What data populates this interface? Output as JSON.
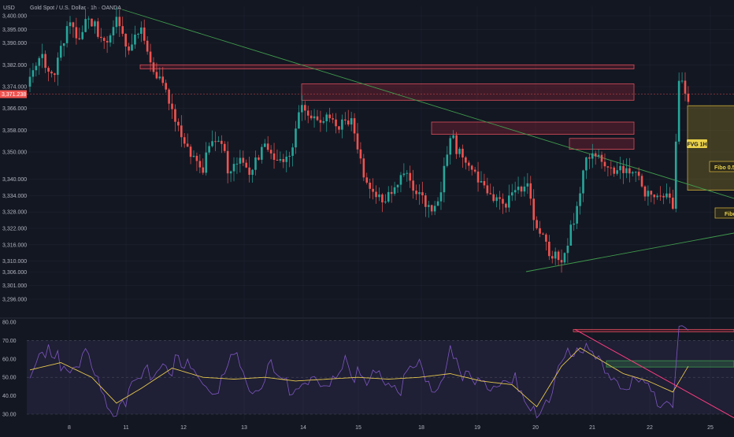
{
  "title": "Gold Spot / U.S. Dollar · 1h · OANDA",
  "currency": "USD",
  "colors": {
    "background": "#131722",
    "grid": "#1f2330",
    "up": "#26a69a",
    "down": "#ef5350",
    "trendline": "#3f9a4c",
    "zone_stroke": "#d94e5b",
    "zone_fill": "rgba(178,40,60,0.28)",
    "fvg_fill": "rgba(200,170,40,0.25)",
    "fvg_stroke": "#c9a838",
    "rsi_line": "#7e57c2",
    "rsi_ma": "#e6c84d",
    "rsi_band": "rgba(126,87,194,0.12)",
    "rsi_trend": "#ff3d7f",
    "price_tag": "#ef5350"
  },
  "chart_data": [
    {
      "type": "candlestick",
      "title": "Gold Spot / U.S. Dollar · 1h · OANDA",
      "x_ticks": [
        "8",
        "11",
        "12",
        "13",
        "14",
        "15",
        "18",
        "19",
        "20",
        "21",
        "22",
        "25"
      ],
      "y_ticks": [
        3400.0,
        3395.0,
        3390.0,
        3382.0,
        3374.0,
        3366.0,
        3358.0,
        3350.0,
        3340.0,
        3334.0,
        3328.0,
        3322.0,
        3316.0,
        3310.0,
        3306.0,
        3301.0,
        3296.0
      ],
      "y_tick_labels": [
        "3,400.000",
        "3,395.000",
        "3,390.000",
        "3,382.000",
        "3,374.000",
        "3,366.000",
        "3,358.000",
        "3,350.000",
        "3,340.000",
        "3,334.000",
        "3,328.000",
        "3,322.000",
        "3,316.000",
        "3,310.000",
        "3,306.000",
        "3,301.000",
        "3,296.000"
      ],
      "current_price": 3371.238,
      "current_price_label": "3,371.238",
      "anchors": [
        [
          0,
          3374
        ],
        [
          4,
          3385
        ],
        [
          8,
          3382
        ],
        [
          12,
          3396
        ],
        [
          16,
          3390
        ],
        [
          20,
          3400
        ],
        [
          24,
          3392
        ],
        [
          28,
          3396
        ],
        [
          32,
          3386
        ],
        [
          36,
          3398
        ],
        [
          40,
          3380
        ],
        [
          44,
          3370
        ],
        [
          48,
          3358
        ],
        [
          52,
          3350
        ],
        [
          56,
          3345
        ],
        [
          60,
          3352
        ],
        [
          64,
          3346
        ],
        [
          68,
          3348
        ],
        [
          72,
          3343
        ],
        [
          76,
          3350
        ],
        [
          80,
          3348
        ],
        [
          84,
          3351
        ],
        [
          88,
          3366
        ],
        [
          92,
          3360
        ],
        [
          96,
          3366
        ],
        [
          100,
          3360
        ],
        [
          104,
          3360
        ],
        [
          108,
          3340
        ],
        [
          112,
          3336
        ],
        [
          116,
          3332
        ],
        [
          120,
          3340
        ],
        [
          124,
          3338
        ],
        [
          128,
          3333
        ],
        [
          132,
          3328
        ],
        [
          136,
          3355
        ],
        [
          140,
          3350
        ],
        [
          144,
          3345
        ],
        [
          148,
          3333
        ],
        [
          152,
          3330
        ],
        [
          156,
          3336
        ],
        [
          160,
          3340
        ],
        [
          164,
          3320
        ],
        [
          168,
          3315
        ],
        [
          172,
          3312
        ],
        [
          176,
          3322
        ],
        [
          180,
          3345
        ],
        [
          184,
          3350
        ],
        [
          188,
          3345
        ],
        [
          192,
          3340
        ],
        [
          196,
          3342
        ],
        [
          200,
          3336
        ],
        [
          204,
          3334
        ],
        [
          208,
          3329
        ],
        [
          210,
          3374
        ],
        [
          213,
          3370
        ]
      ],
      "rsi": {
        "y_ticks": [
          30,
          40,
          50,
          60,
          70,
          80
        ],
        "y_tick_labels": [
          "30.00",
          "40.00",
          "50.00",
          "60.00",
          "70.00",
          "80.00"
        ],
        "upper_band": 70,
        "mid": 50,
        "lower_band": 30,
        "anchors": [
          [
            0,
            52
          ],
          [
            6,
            62
          ],
          [
            12,
            56
          ],
          [
            18,
            62
          ],
          [
            22,
            46
          ],
          [
            26,
            32
          ],
          [
            30,
            38
          ],
          [
            36,
            48
          ],
          [
            42,
            58
          ],
          [
            48,
            56
          ],
          [
            54,
            52
          ],
          [
            60,
            42
          ],
          [
            66,
            60
          ],
          [
            72,
            46
          ],
          [
            78,
            54
          ],
          [
            84,
            44
          ],
          [
            90,
            50
          ],
          [
            96,
            40
          ],
          [
            102,
            62
          ],
          [
            108,
            44
          ],
          [
            114,
            52
          ],
          [
            120,
            46
          ],
          [
            126,
            56
          ],
          [
            132,
            44
          ],
          [
            136,
            64
          ],
          [
            140,
            48
          ],
          [
            146,
            52
          ],
          [
            152,
            42
          ],
          [
            158,
            48
          ],
          [
            164,
            32
          ],
          [
            168,
            34
          ],
          [
            174,
            68
          ],
          [
            180,
            64
          ],
          [
            186,
            52
          ],
          [
            192,
            48
          ],
          [
            198,
            46
          ],
          [
            204,
            38
          ],
          [
            208,
            36
          ],
          [
            210,
            76
          ],
          [
            213,
            70
          ]
        ],
        "ma_anchors": [
          [
            0,
            54
          ],
          [
            10,
            58
          ],
          [
            20,
            50
          ],
          [
            28,
            36
          ],
          [
            36,
            44
          ],
          [
            46,
            55
          ],
          [
            56,
            50
          ],
          [
            66,
            49
          ],
          [
            76,
            50
          ],
          [
            86,
            48
          ],
          [
            96,
            49
          ],
          [
            106,
            50
          ],
          [
            116,
            49
          ],
          [
            126,
            50
          ],
          [
            136,
            52
          ],
          [
            146,
            48
          ],
          [
            156,
            46
          ],
          [
            164,
            34
          ],
          [
            172,
            56
          ],
          [
            178,
            66
          ],
          [
            184,
            60
          ],
          [
            192,
            52
          ],
          [
            200,
            48
          ],
          [
            208,
            42
          ],
          [
            213,
            56
          ]
        ]
      },
      "labels": {
        "fvg": "FVG 1H",
        "fibo1": "Fibo 0.5",
        "fibo2": "Fibo"
      }
    }
  ]
}
